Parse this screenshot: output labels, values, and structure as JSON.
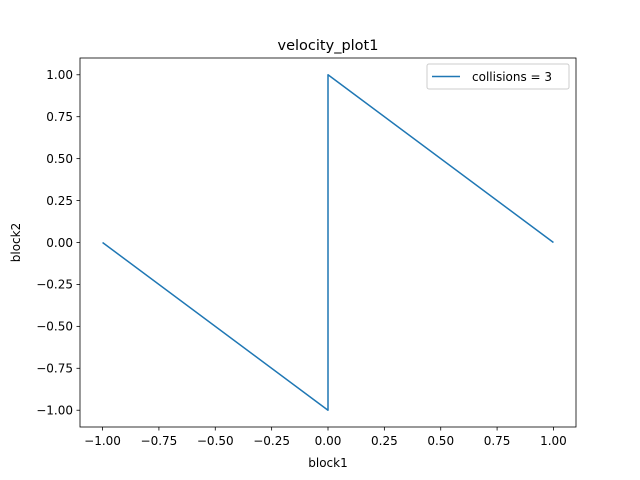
{
  "chart_data": {
    "type": "line",
    "title": "velocity_plot1",
    "xlabel": "block1",
    "ylabel": "block2",
    "xlim": [
      -1.1,
      1.1
    ],
    "ylim": [
      -1.1,
      1.1
    ],
    "xticks": [
      -1.0,
      -0.75,
      -0.5,
      -0.25,
      0.0,
      0.25,
      0.5,
      0.75,
      1.0
    ],
    "xtick_labels": [
      "−1.00",
      "−0.75",
      "−0.50",
      "−0.25",
      "0.00",
      "0.25",
      "0.50",
      "0.75",
      "1.00"
    ],
    "yticks": [
      -1.0,
      -0.75,
      -0.5,
      -0.25,
      0.0,
      0.25,
      0.5,
      0.75,
      1.0
    ],
    "ytick_labels": [
      "−1.00",
      "−0.75",
      "−0.50",
      "−0.25",
      "0.00",
      "0.25",
      "0.50",
      "0.75",
      "1.00"
    ],
    "grid": false,
    "legend_position": "top-right",
    "series": [
      {
        "name": "collisions = 3",
        "color": "#1f77b4",
        "points": [
          {
            "x": -1.0,
            "y": 0.0
          },
          {
            "x": 0.0,
            "y": -1.0
          },
          {
            "x": 0.0,
            "y": 1.0
          },
          {
            "x": 1.0,
            "y": 0.0
          }
        ]
      }
    ]
  }
}
